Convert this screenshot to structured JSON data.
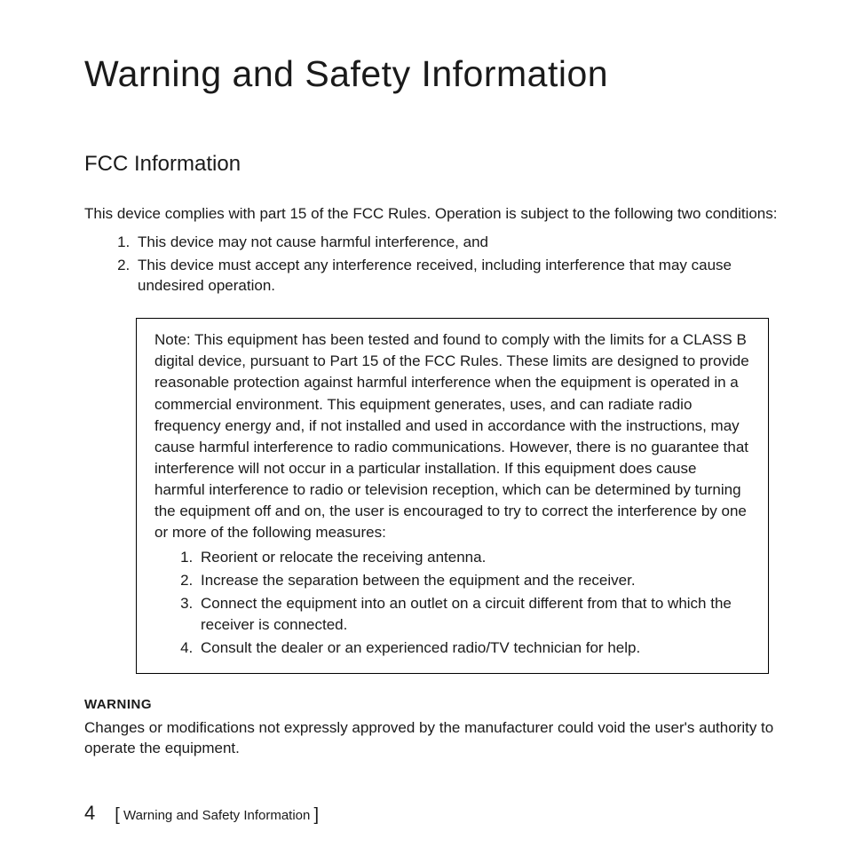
{
  "colors": {
    "background": "#ffffff",
    "text": "#1a1a1a",
    "border": "#000000"
  },
  "typography": {
    "title_fontsize": 41,
    "title_weight": 300,
    "subtitle_fontsize": 24,
    "body_fontsize": 17,
    "warning_label_fontsize": 15,
    "footer_fontsize": 15,
    "page_num_fontsize": 22
  },
  "title": "Warning and Safety Information",
  "section": {
    "heading": "FCC Information",
    "intro": "This device complies with part 15 of the FCC Rules. Operation is subject to the following two conditions:",
    "conditions": [
      "This device may not cause harmful interference, and",
      "This device must accept any interference received, including interference that may cause undesired operation."
    ],
    "note": {
      "text": "Note: This equipment has been tested and found to comply with the limits for a CLASS B digital device, pursuant to Part 15 of the FCC Rules. These limits are designed to provide reasonable protection against harmful interference when the equipment is operated in a commercial environment. This equipment generates, uses, and can radiate radio frequency energy and, if not installed and used in accordance with the instructions, may cause harmful interference to radio communications. However, there is no guarantee that interference will not occur in a particular installation. If this equipment does cause harmful interference to radio or television reception, which can be determined by turning the equipment off and on, the user is encouraged to try to correct the interference by one or more of the following measures:",
      "measures": [
        "Reorient or relocate the receiving antenna.",
        "Increase the separation between the equipment and the receiver.",
        "Connect the equipment into an outlet on a circuit different from that to which the receiver is connected.",
        "Consult the dealer or an experienced radio/TV technician for help."
      ]
    },
    "warning_label": "WARNING",
    "warning_text": "Changes or modifications not expressly approved by the manufacturer could void the user's authority to operate the equipment."
  },
  "footer": {
    "page_number": "4",
    "bracket_open": "[",
    "label": " Warning and Safety Information ",
    "bracket_close": "]"
  }
}
